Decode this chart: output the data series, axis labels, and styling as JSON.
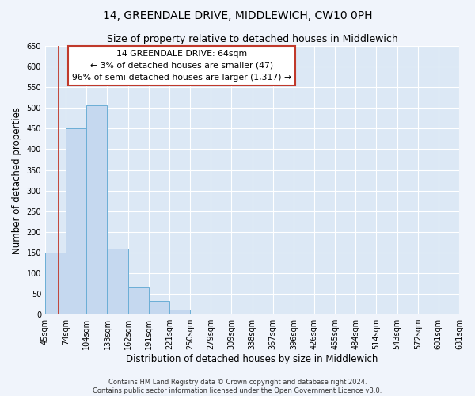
{
  "title": "14, GREENDALE DRIVE, MIDDLEWICH, CW10 0PH",
  "subtitle": "Size of property relative to detached houses in Middlewich",
  "xlabel": "Distribution of detached houses by size in Middlewich",
  "ylabel": "Number of detached properties",
  "bin_labels": [
    "45sqm",
    "74sqm",
    "104sqm",
    "133sqm",
    "162sqm",
    "191sqm",
    "221sqm",
    "250sqm",
    "279sqm",
    "309sqm",
    "338sqm",
    "367sqm",
    "396sqm",
    "426sqm",
    "455sqm",
    "484sqm",
    "514sqm",
    "543sqm",
    "572sqm",
    "601sqm",
    "631sqm"
  ],
  "bar_heights": [
    150,
    450,
    507,
    160,
    65,
    32,
    12,
    0,
    0,
    0,
    0,
    2,
    0,
    0,
    2,
    0,
    0,
    0,
    0,
    0,
    2
  ],
  "bar_color": "#c5d8ef",
  "bar_edge_color": "#6baed6",
  "property_line_color": "#c0392b",
  "annotation_box_text": "14 GREENDALE DRIVE: 64sqm\n← 3% of detached houses are smaller (47)\n96% of semi-detached houses are larger (1,317) →",
  "annotation_box_facecolor": "#ffffff",
  "annotation_box_edgecolor": "#c0392b",
  "ylim": [
    0,
    650
  ],
  "yticks": [
    0,
    50,
    100,
    150,
    200,
    250,
    300,
    350,
    400,
    450,
    500,
    550,
    600,
    650
  ],
  "footer_line1": "Contains HM Land Registry data © Crown copyright and database right 2024.",
  "footer_line2": "Contains public sector information licensed under the Open Government Licence v3.0.",
  "fig_facecolor": "#f0f4fb",
  "plot_bg_color": "#dce8f5",
  "title_fontsize": 10,
  "subtitle_fontsize": 9,
  "tick_fontsize": 7,
  "ylabel_fontsize": 8.5,
  "xlabel_fontsize": 8.5,
  "footer_fontsize": 6,
  "annotation_fontsize": 7.8
}
